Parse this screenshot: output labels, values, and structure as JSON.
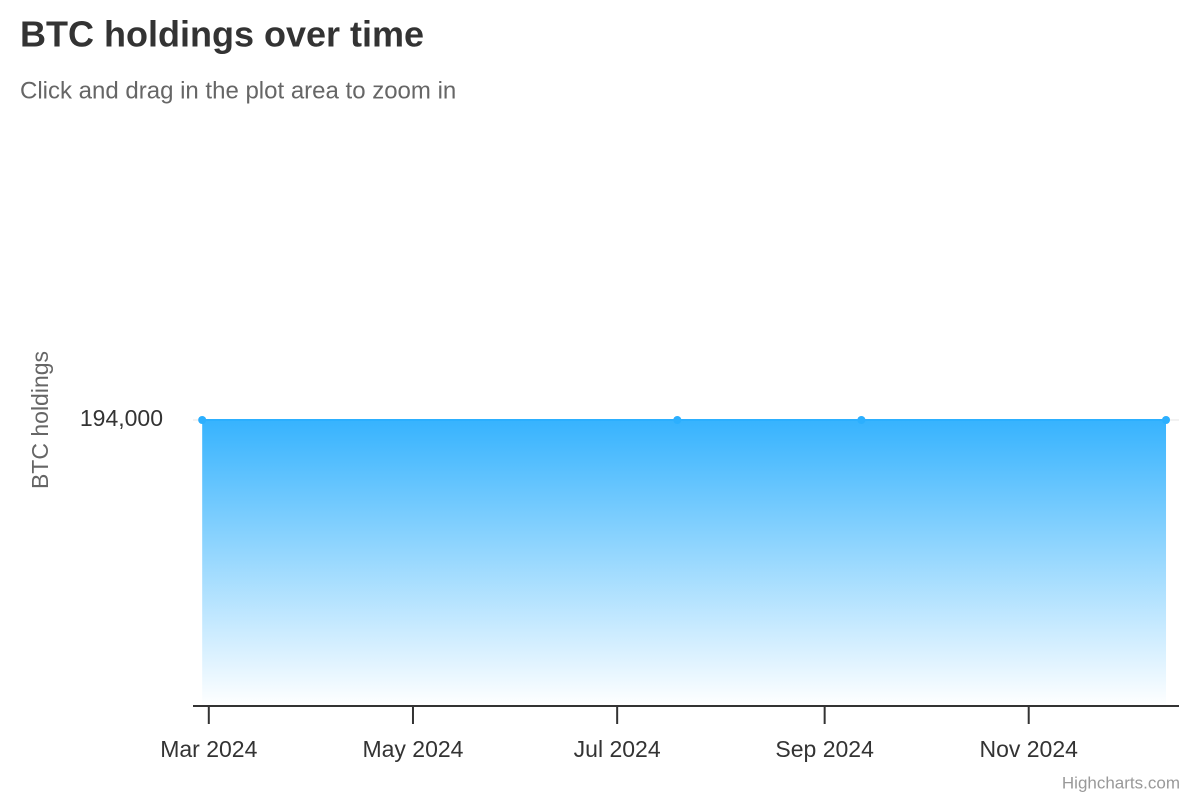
{
  "chart_data": {
    "type": "area",
    "title": "BTC holdings over time",
    "subtitle": "Click and drag in the plot area to zoom in",
    "y_label": "BTC holdings",
    "credit": "Highcharts.com",
    "x": [
      2024.1585,
      2024.5464,
      2024.6967,
      2024.9454
    ],
    "series": [
      {
        "name": "BTC holdings",
        "color": "#2caffe",
        "values": [
          194000,
          194000,
          194000,
          194000
        ]
      }
    ],
    "xlim": [
      2024.151,
      2024.956
    ],
    "xticks": [
      {
        "value": 2024.1639,
        "label": "Mar 2024"
      },
      {
        "value": 2024.3306,
        "label": "May 2024"
      },
      {
        "value": 2024.4973,
        "label": "Jul 2024"
      },
      {
        "value": 2024.6667,
        "label": "Sep 2024"
      },
      {
        "value": 2024.8333,
        "label": "Nov 2024"
      }
    ],
    "ylim": [
      0,
      388000
    ],
    "yticks": [
      {
        "value": 194000,
        "label": "194,000"
      }
    ],
    "grid": true
  }
}
